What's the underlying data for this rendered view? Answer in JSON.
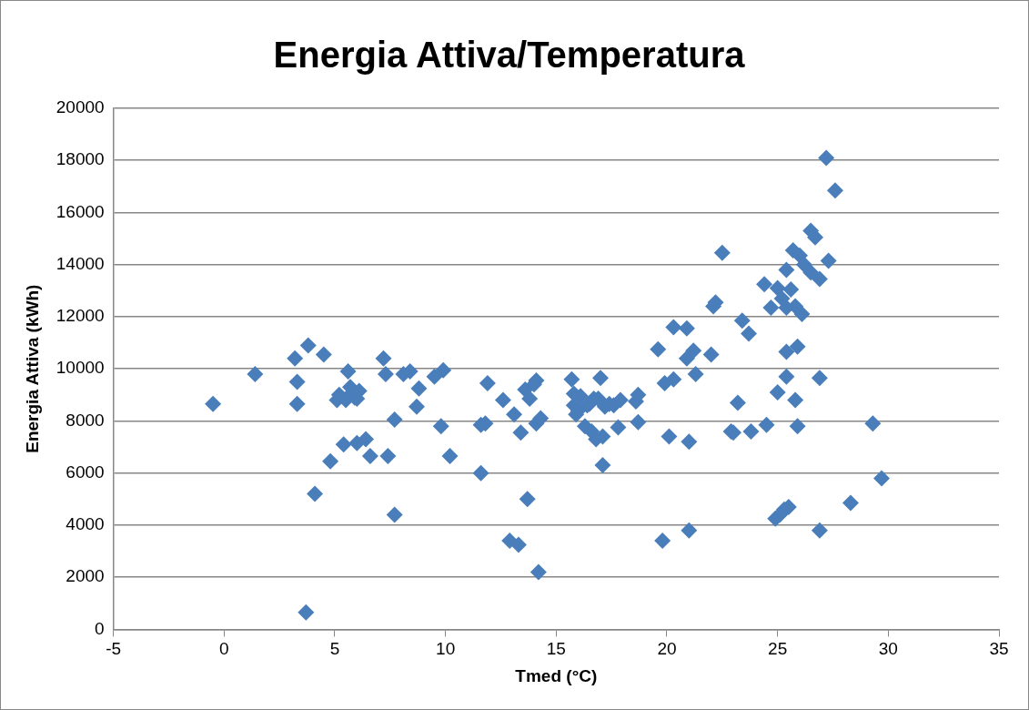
{
  "chart_data": {
    "type": "scatter",
    "title": "Energia Attiva/Temperatura",
    "xlabel": "Tmed (°C)",
    "ylabel": "Energia Attiva (kWh)",
    "marker": "diamond",
    "grid": "y",
    "legend": false,
    "xlim": [
      -5,
      35
    ],
    "xticks": [
      -5,
      0,
      5,
      10,
      15,
      20,
      25,
      30,
      35
    ],
    "ylim": [
      0,
      20000
    ],
    "yticks": [
      0,
      2000,
      4000,
      6000,
      8000,
      10000,
      12000,
      14000,
      16000,
      18000,
      20000
    ],
    "series": [
      {
        "color": "#4a7ebb",
        "x": [
          -0.5,
          1.4,
          3.2,
          3.3,
          3.3,
          3.8,
          4.5,
          3.7,
          4.1,
          4.8,
          5.1,
          5.2,
          5.4,
          5.5,
          5.6,
          5.7,
          5.8,
          5.9,
          6.0,
          6.1,
          6.0,
          6.4,
          6.6,
          7.2,
          7.3,
          7.4,
          7.7,
          7.7,
          8.1,
          8.4,
          8.7,
          8.8,
          9.5,
          9.8,
          9.9,
          10.2,
          11.6,
          11.6,
          11.8,
          11.9,
          12.6,
          12.9,
          13.1,
          13.3,
          13.4,
          13.6,
          13.7,
          13.8,
          14.0,
          14.1,
          14.1,
          14.3,
          14.2,
          15.7,
          15.8,
          15.8,
          15.9,
          16.0,
          16.1,
          16.3,
          16.4,
          16.5,
          16.6,
          16.7,
          16.8,
          16.9,
          17.0,
          17.1,
          17.1,
          17.2,
          17.4,
          17.6,
          17.8,
          17.9,
          18.6,
          18.7,
          18.7,
          19.6,
          19.8,
          19.9,
          20.1,
          20.3,
          20.3,
          20.9,
          20.9,
          21.0,
          21.0,
          21.2,
          21.3,
          22.0,
          22.1,
          22.2,
          22.5,
          22.9,
          23.0,
          23.2,
          23.4,
          23.7,
          23.8,
          24.4,
          24.5,
          24.7,
          24.9,
          25.0,
          25.0,
          25.1,
          25.2,
          25.3,
          25.4,
          25.4,
          25.4,
          25.4,
          25.5,
          25.6,
          25.7,
          25.8,
          25.8,
          25.9,
          25.9,
          26.0,
          26.1,
          26.2,
          26.5,
          26.5,
          26.7,
          26.9,
          26.9,
          26.9,
          27.2,
          27.3,
          27.6,
          28.3,
          29.3,
          29.7
        ],
        "values": [
          8650,
          9800,
          10400,
          9500,
          8650,
          10900,
          10550,
          650,
          5200,
          6450,
          8800,
          9000,
          7100,
          8800,
          9900,
          9300,
          9100,
          8900,
          8850,
          9150,
          7150,
          7300,
          6650,
          10400,
          9800,
          6650,
          8050,
          4400,
          9800,
          9900,
          8550,
          9250,
          9700,
          7800,
          9950,
          6650,
          6000,
          7850,
          7900,
          9450,
          8800,
          3400,
          8250,
          3250,
          7550,
          9200,
          5000,
          8850,
          9400,
          9550,
          7900,
          8100,
          2200,
          9600,
          9050,
          8600,
          8250,
          8400,
          8950,
          7800,
          8600,
          8650,
          7600,
          8850,
          7300,
          8850,
          9650,
          7400,
          6300,
          8550,
          8650,
          8600,
          7750,
          8800,
          8750,
          9000,
          7950,
          10750,
          3400,
          9450,
          7400,
          9600,
          11600,
          11550,
          10400,
          7200,
          3800,
          10700,
          9800,
          10550,
          12400,
          12550,
          14450,
          7600,
          7550,
          8700,
          11850,
          11350,
          7600,
          13250,
          7850,
          12350,
          4250,
          13100,
          9100,
          4400,
          12700,
          4600,
          12350,
          13800,
          9700,
          10650,
          4700,
          13050,
          14550,
          8800,
          12400,
          10850,
          7800,
          14350,
          12100,
          14000,
          15300,
          13700,
          15050,
          13450,
          3800,
          9650,
          18100,
          14150,
          16850,
          4850,
          7900,
          5800
        ]
      }
    ]
  }
}
